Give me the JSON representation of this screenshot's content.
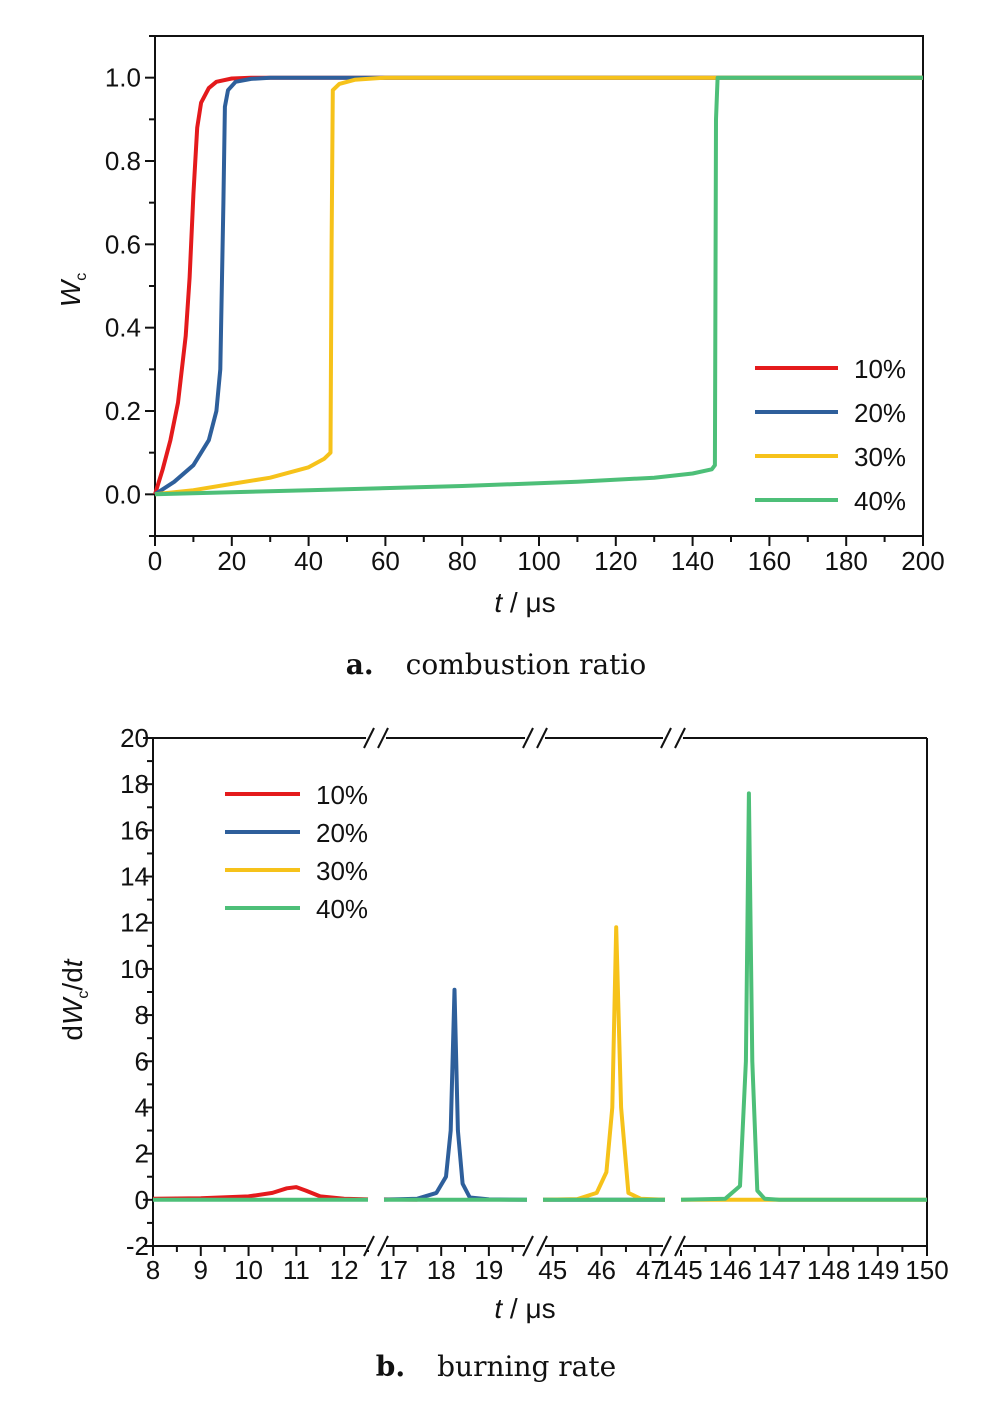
{
  "chart_data": [
    {
      "type": "line",
      "caption_letter": "a.",
      "caption_text": "combustion ratio",
      "xlabel_var": "t",
      "xlabel_unit": " / μs",
      "ylabel_var": "W",
      "ylabel_sub": "c",
      "xlim": [
        0,
        200
      ],
      "ylim": [
        -0.1,
        1.1
      ],
      "x_ticks": [
        0,
        20,
        40,
        60,
        80,
        100,
        120,
        140,
        160,
        180,
        200
      ],
      "x_tick_labels": [
        "0",
        "20",
        "40",
        "60",
        "80",
        "100",
        "120",
        "140",
        "160",
        "180",
        "200"
      ],
      "y_ticks": [
        0.0,
        0.2,
        0.4,
        0.6,
        0.8,
        1.0
      ],
      "y_tick_labels": [
        "0.0",
        "0.2",
        "0.4",
        "0.6",
        "0.8",
        "1.0"
      ],
      "legend_position": "lower-right",
      "series": [
        {
          "name": "10%",
          "color": "#e41a1c",
          "x": [
            0,
            2,
            4,
            6,
            8,
            9,
            10,
            11,
            12,
            14,
            16,
            20,
            25,
            30,
            200
          ],
          "y": [
            0,
            0.06,
            0.13,
            0.22,
            0.38,
            0.52,
            0.72,
            0.88,
            0.94,
            0.975,
            0.99,
            0.998,
            1.0,
            1.0,
            1.0
          ]
        },
        {
          "name": "20%",
          "color": "#2e5f9b",
          "x": [
            0,
            5,
            10,
            14,
            16,
            17,
            17.8,
            18.2,
            19,
            21,
            25,
            30,
            40,
            200
          ],
          "y": [
            0,
            0.03,
            0.07,
            0.13,
            0.2,
            0.3,
            0.7,
            0.93,
            0.97,
            0.99,
            0.997,
            1.0,
            1.0,
            1.0
          ]
        },
        {
          "name": "30%",
          "color": "#f6c21a",
          "x": [
            0,
            10,
            20,
            30,
            40,
            44,
            45.7,
            46,
            46.3,
            48,
            52,
            60,
            200
          ],
          "y": [
            0,
            0.01,
            0.025,
            0.04,
            0.065,
            0.085,
            0.1,
            0.6,
            0.97,
            0.985,
            0.995,
            1.0,
            1.0
          ]
        },
        {
          "name": "40%",
          "color": "#4dbf78",
          "x": [
            0,
            40,
            80,
            110,
            130,
            140,
            145,
            145.8,
            146.1,
            146.5,
            200
          ],
          "y": [
            0,
            0.01,
            0.02,
            0.03,
            0.04,
            0.05,
            0.06,
            0.07,
            0.9,
            1.0,
            1.0
          ]
        }
      ]
    },
    {
      "type": "line",
      "caption_letter": "b.",
      "caption_text": "burning rate",
      "xlabel_var": "t",
      "xlabel_unit": " / μs",
      "ylabel_pre": "d",
      "ylabel_var": "W",
      "ylabel_sub": "c",
      "ylabel_mid": "/d",
      "ylabel_var2": "t",
      "ylim": [
        -2,
        20
      ],
      "y_ticks": [
        -2,
        0,
        2,
        4,
        6,
        8,
        10,
        12,
        14,
        16,
        18,
        20
      ],
      "y_tick_labels": [
        "-2",
        "0",
        "2",
        "4",
        "6",
        "8",
        "10",
        "12",
        "14",
        "16",
        "18",
        "20"
      ],
      "x_segments": [
        {
          "range": [
            8,
            12.5
          ],
          "ticks": [
            8,
            9,
            10,
            11,
            12
          ],
          "labels": [
            "8",
            "9",
            "10",
            "11",
            "12"
          ]
        },
        {
          "range": [
            16.8,
            19.8
          ],
          "ticks": [
            17,
            18,
            19
          ],
          "labels": [
            "17",
            "18",
            "19"
          ]
        },
        {
          "range": [
            44.8,
            47.3
          ],
          "ticks": [
            45,
            46,
            47
          ],
          "labels": [
            "45",
            "46",
            "47"
          ]
        },
        {
          "range": [
            145,
            150
          ],
          "ticks": [
            145,
            146,
            147,
            148,
            149,
            150
          ],
          "labels": [
            "145",
            "146",
            "147",
            "148",
            "149",
            "150"
          ]
        }
      ],
      "axis_break_symbol": "//",
      "legend_position": "upper-left",
      "series": [
        {
          "name": "10%",
          "color": "#e41a1c",
          "x": [
            8,
            9,
            10,
            10.5,
            10.8,
            11.0,
            11.2,
            11.5,
            12,
            12.5,
            16.8,
            17.5
          ],
          "y": [
            0.05,
            0.07,
            0.15,
            0.3,
            0.5,
            0.55,
            0.4,
            0.15,
            0.05,
            0.02,
            0.02,
            0.01
          ]
        },
        {
          "name": "20%",
          "color": "#2e5f9b",
          "x": [
            16.8,
            17.5,
            17.9,
            18.1,
            18.2,
            18.28,
            18.35,
            18.45,
            18.6,
            19,
            19.8,
            44.8,
            47.3
          ],
          "y": [
            0.01,
            0.05,
            0.3,
            1.0,
            3.0,
            9.1,
            3.0,
            0.7,
            0.1,
            0.02,
            0.0,
            0.0,
            0.0
          ]
        },
        {
          "name": "30%",
          "color": "#f6c21a",
          "x": [
            44.8,
            45.5,
            45.9,
            46.1,
            46.22,
            46.3,
            46.4,
            46.55,
            46.8,
            47.3,
            145,
            150
          ],
          "y": [
            0.0,
            0.03,
            0.3,
            1.2,
            4.0,
            11.8,
            4.0,
            0.3,
            0.05,
            0.0,
            0.0,
            0.0
          ]
        },
        {
          "name": "40%",
          "color": "#4dbf78",
          "x": [
            8,
            12.5,
            16.8,
            19.8,
            44.8,
            47.3,
            145,
            145.9,
            146.2,
            146.32,
            146.38,
            146.45,
            146.55,
            146.7,
            147,
            150
          ],
          "y": [
            0.0,
            0.0,
            0.0,
            0.0,
            0.0,
            0.0,
            0.0,
            0.05,
            0.6,
            6.0,
            17.6,
            6.0,
            0.4,
            0.05,
            0.0,
            0.0
          ]
        }
      ]
    }
  ]
}
